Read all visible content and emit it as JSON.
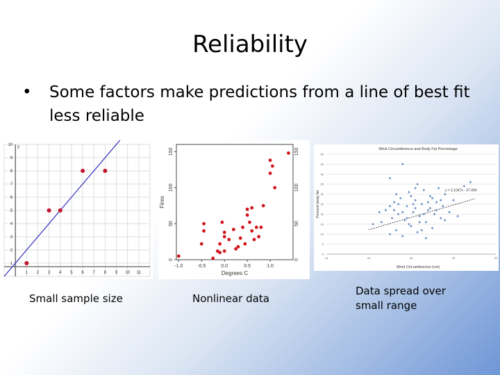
{
  "slide": {
    "title": "Reliability",
    "bullet_symbol": "•",
    "bullet_text": "Some factors make predictions from a line of best fit less reliable"
  },
  "captions": {
    "left": "Small sample size",
    "middle": "Nonlinear data",
    "right": "Data spread over small range"
  },
  "chart_data": [
    {
      "type": "scatter",
      "title": "",
      "xlabel": "",
      "ylabel": "y",
      "xlim": [
        -1,
        12
      ],
      "ylim": [
        0,
        10
      ],
      "grid": true,
      "x_ticks": [
        "1",
        "2",
        "3",
        "4",
        "5",
        "6",
        "7",
        "8",
        "9",
        "10",
        "11"
      ],
      "y_ticks": [
        "1",
        "2",
        "3",
        "4",
        "5",
        "6",
        "7",
        "8",
        "9",
        "10"
      ],
      "points": [
        [
          1,
          1
        ],
        [
          3,
          5
        ],
        [
          4,
          5
        ],
        [
          6,
          8
        ],
        [
          8,
          8
        ]
      ],
      "trendline": {
        "from": [
          -1,
          0
        ],
        "to": [
          10,
          11
        ]
      }
    },
    {
      "type": "scatter",
      "title": "",
      "xlabel": "Degrees C",
      "ylabel": "Fires",
      "xlim": [
        -1.05,
        1.5
      ],
      "ylim": [
        0,
        160
      ],
      "grid": false,
      "x_ticks": [
        "-1.0",
        "-0.5",
        "0.0",
        "0.5",
        "1.0"
      ],
      "y_ticks": [
        "0",
        "50",
        "100",
        "150"
      ],
      "points": [
        [
          -1.0,
          5
        ],
        [
          -0.45,
          50
        ],
        [
          -0.45,
          40
        ],
        [
          -0.5,
          22
        ],
        [
          -0.1,
          22
        ],
        [
          -0.05,
          52
        ],
        [
          -0.15,
          12
        ],
        [
          -0.25,
          2
        ],
        [
          0.0,
          12
        ],
        [
          0.0,
          32
        ],
        [
          -0.1,
          10
        ],
        [
          0.0,
          38
        ],
        [
          0.1,
          28
        ],
        [
          0.2,
          42
        ],
        [
          0.25,
          15
        ],
        [
          0.3,
          18
        ],
        [
          0.35,
          30
        ],
        [
          0.45,
          22
        ],
        [
          0.4,
          45
        ],
        [
          0.5,
          70
        ],
        [
          0.5,
          62
        ],
        [
          0.55,
          52
        ],
        [
          0.6,
          72
        ],
        [
          0.6,
          40
        ],
        [
          0.65,
          28
        ],
        [
          0.7,
          45
        ],
        [
          0.75,
          32
        ],
        [
          0.8,
          45
        ],
        [
          0.85,
          75
        ],
        [
          1.0,
          120
        ],
        [
          1.05,
          130
        ],
        [
          1.0,
          138
        ],
        [
          1.1,
          100
        ],
        [
          1.4,
          148
        ]
      ]
    },
    {
      "type": "scatter",
      "title": "Wrist Circumference and Body Fat Percentage",
      "xlabel": "Wrist Circumference (cm)",
      "ylabel": "Percent body fat",
      "xlim": [
        14,
        22
      ],
      "ylim": [
        0,
        50
      ],
      "grid": true,
      "x_ticks": [
        "14",
        "16",
        "18",
        "20",
        "22"
      ],
      "y_ticks": [
        "0",
        "5",
        "10",
        "15",
        "20",
        "25",
        "30",
        "35",
        "40",
        "45",
        "50"
      ],
      "equation": "y = 3.1047x - 37.494",
      "trendline": {
        "from": [
          16,
          12.2
        ],
        "to": [
          21,
          27.7
        ]
      },
      "points": [
        [
          17.6,
          45
        ],
        [
          17.0,
          38
        ],
        [
          16.2,
          15
        ],
        [
          16.6,
          16
        ],
        [
          16.8,
          22
        ],
        [
          17.0,
          10
        ],
        [
          17.1,
          18
        ],
        [
          17.2,
          26
        ],
        [
          17.3,
          12
        ],
        [
          17.4,
          20
        ],
        [
          17.5,
          28
        ],
        [
          17.6,
          9
        ],
        [
          17.7,
          17
        ],
        [
          17.8,
          24
        ],
        [
          17.9,
          31
        ],
        [
          18.0,
          14
        ],
        [
          18.1,
          21
        ],
        [
          18.2,
          27
        ],
        [
          18.3,
          11
        ],
        [
          18.4,
          19
        ],
        [
          18.5,
          25
        ],
        [
          18.6,
          32
        ],
        [
          18.7,
          16
        ],
        [
          18.8,
          22
        ],
        [
          18.9,
          29
        ],
        [
          19.0,
          13
        ],
        [
          19.1,
          20
        ],
        [
          19.2,
          26
        ],
        [
          19.3,
          33
        ],
        [
          19.4,
          18
        ],
        [
          19.5,
          24
        ],
        [
          19.6,
          30
        ],
        [
          19.8,
          21
        ],
        [
          20.0,
          27
        ],
        [
          20.2,
          19
        ],
        [
          20.5,
          34
        ],
        [
          17.2,
          22
        ],
        [
          17.8,
          18
        ],
        [
          18.2,
          23
        ],
        [
          18.6,
          20
        ],
        [
          18.0,
          29
        ],
        [
          17.4,
          25
        ],
        [
          18.4,
          16
        ],
        [
          18.8,
          26
        ],
        [
          19.2,
          22
        ],
        [
          17.6,
          21
        ],
        [
          18.2,
          33
        ],
        [
          17.9,
          15
        ],
        [
          18.5,
          12
        ],
        [
          19.0,
          28
        ],
        [
          20.8,
          36
        ],
        [
          16.5,
          21
        ],
        [
          17.0,
          24
        ],
        [
          18.3,
          35
        ],
        [
          19.6,
          17
        ],
        [
          18.7,
          8
        ],
        [
          17.3,
          30
        ],
        [
          18.1,
          25
        ],
        [
          18.9,
          23
        ],
        [
          19.4,
          27
        ]
      ]
    }
  ]
}
